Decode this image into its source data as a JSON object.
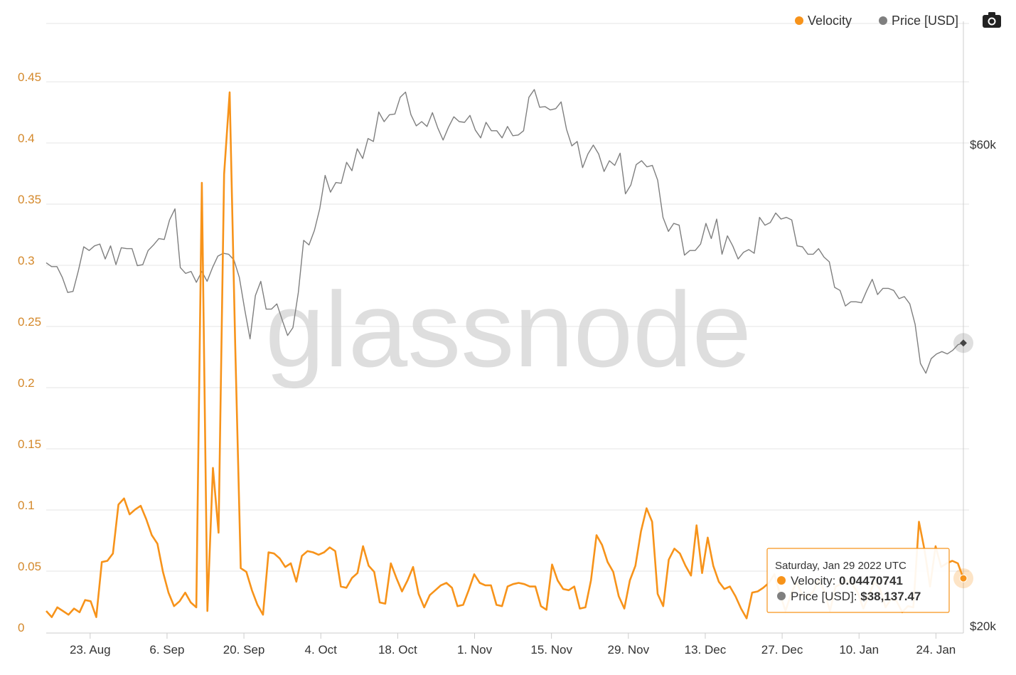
{
  "legend": {
    "velocity_label": "Velocity",
    "price_label": "Price [USD]"
  },
  "watermark": "glassnode",
  "colors": {
    "velocity": "#f7931a",
    "price": "#7f7f7f",
    "left_axis": "#d4882a"
  },
  "icons": {
    "export": "camera-icon"
  },
  "tooltip": {
    "date": "Saturday, Jan 29 2022 UTC",
    "velocity_label": "Velocity: ",
    "velocity_value": "0.04470741",
    "price_label": "Price [USD]: ",
    "price_value": "$38,137.47"
  },
  "chart_data": {
    "type": "line",
    "title": "",
    "grid": true,
    "legend_position": "top-right",
    "x_range": [
      "2021-08-15",
      "2022-01-29"
    ],
    "x_ticks": [
      {
        "label": "23. Aug",
        "date": "2021-08-23"
      },
      {
        "label": "6. Sep",
        "date": "2021-09-06"
      },
      {
        "label": "20. Sep",
        "date": "2021-09-20"
      },
      {
        "label": "4. Oct",
        "date": "2021-10-04"
      },
      {
        "label": "18. Oct",
        "date": "2021-10-18"
      },
      {
        "label": "1. Nov",
        "date": "2021-11-01"
      },
      {
        "label": "15. Nov",
        "date": "2021-11-15"
      },
      {
        "label": "29. Nov",
        "date": "2021-11-29"
      },
      {
        "label": "13. Dec",
        "date": "2021-12-13"
      },
      {
        "label": "27. Dec",
        "date": "2021-12-27"
      },
      {
        "label": "10. Jan",
        "date": "2022-01-10"
      },
      {
        "label": "24. Jan",
        "date": "2022-01-24"
      }
    ],
    "y_left": {
      "min": 0,
      "max": 0.5,
      "ticks": [
        {
          "label": "0",
          "value": 0
        },
        {
          "label": "0.05",
          "value": 0.05
        },
        {
          "label": "0.1",
          "value": 0.1
        },
        {
          "label": "0.15",
          "value": 0.15
        },
        {
          "label": "0.2",
          "value": 0.2
        },
        {
          "label": "0.25",
          "value": 0.25
        },
        {
          "label": "0.3",
          "value": 0.3
        },
        {
          "label": "0.35",
          "value": 0.35
        },
        {
          "label": "0.4",
          "value": 0.4
        },
        {
          "label": "0.45",
          "value": 0.45
        }
      ]
    },
    "y_right": {
      "scale": "log",
      "min": 20000,
      "max": 80000,
      "ticks": [
        {
          "label": "$20k",
          "value": 20000
        },
        {
          "label": "$60k",
          "value": 60000
        }
      ]
    },
    "series": [
      {
        "name": "Velocity",
        "axis": "left",
        "values": [
          0.018,
          0.013,
          0.021,
          0.018,
          0.015,
          0.02,
          0.017,
          0.027,
          0.026,
          0.013,
          0.058,
          0.059,
          0.065,
          0.105,
          0.11,
          0.097,
          0.101,
          0.104,
          0.093,
          0.08,
          0.073,
          0.05,
          0.033,
          0.022,
          0.026,
          0.033,
          0.025,
          0.021,
          0.368,
          0.018,
          0.135,
          0.082,
          0.375,
          0.442,
          0.236,
          0.053,
          0.05,
          0.035,
          0.023,
          0.015,
          0.066,
          0.065,
          0.061,
          0.054,
          0.057,
          0.042,
          0.063,
          0.067,
          0.066,
          0.064,
          0.066,
          0.07,
          0.067,
          0.038,
          0.037,
          0.045,
          0.049,
          0.071,
          0.055,
          0.05,
          0.025,
          0.024,
          0.057,
          0.045,
          0.034,
          0.043,
          0.054,
          0.032,
          0.021,
          0.031,
          0.035,
          0.039,
          0.041,
          0.037,
          0.022,
          0.023,
          0.035,
          0.048,
          0.041,
          0.039,
          0.039,
          0.023,
          0.022,
          0.038,
          0.04,
          0.041,
          0.04,
          0.038,
          0.038,
          0.022,
          0.019,
          0.056,
          0.043,
          0.036,
          0.035,
          0.038,
          0.02,
          0.021,
          0.043,
          0.08,
          0.072,
          0.058,
          0.05,
          0.03,
          0.02,
          0.043,
          0.055,
          0.083,
          0.102,
          0.091,
          0.032,
          0.022,
          0.06,
          0.069,
          0.065,
          0.055,
          0.047,
          0.088,
          0.049,
          0.078,
          0.055,
          0.042,
          0.036,
          0.038,
          0.03,
          0.02,
          0.012,
          0.033,
          0.034,
          0.037,
          0.041,
          0.048,
          0.032,
          0.018,
          0.032,
          0.042,
          0.031,
          0.03,
          0.034,
          0.044,
          0.034,
          0.018,
          0.038,
          0.04,
          0.043,
          0.04,
          0.033,
          0.02,
          0.031,
          0.042,
          0.036,
          0.021,
          0.028,
          0.026,
          0.017,
          0.022,
          0.021,
          0.091,
          0.068,
          0.038,
          0.071,
          0.054,
          0.057,
          0.059,
          0.057,
          0.0447
        ]
      },
      {
        "name": "Price [USD]",
        "axis": "right",
        "values": [
          45800,
          45400,
          45400,
          44300,
          42800,
          42900,
          45000,
          47500,
          47100,
          47600,
          47800,
          46200,
          47600,
          45600,
          47400,
          47300,
          47300,
          45500,
          45600,
          47100,
          47700,
          48400,
          48300,
          50500,
          51800,
          45300,
          44700,
          44900,
          43800,
          44900,
          43900,
          45300,
          46500,
          46800,
          46700,
          46100,
          44300,
          41200,
          38500,
          42500,
          43900,
          41200,
          41200,
          41700,
          40200,
          38800,
          39500,
          42800,
          48200,
          47700,
          49300,
          51800,
          55900,
          53800,
          55000,
          54900,
          57600,
          56500,
          59400,
          58100,
          60800,
          60400,
          64600,
          63200,
          64200,
          64300,
          66800,
          67600,
          64200,
          62600,
          63200,
          62500,
          64500,
          62300,
          60600,
          62400,
          63900,
          63200,
          63100,
          64100,
          62000,
          60900,
          63100,
          61900,
          61900,
          60900,
          62500,
          61200,
          61300,
          61900,
          66800,
          68000,
          65300,
          65400,
          64900,
          65100,
          66100,
          62100,
          59800,
          60400,
          56900,
          58700,
          59900,
          58700,
          56400,
          57800,
          57200,
          58800,
          53600,
          54700,
          57300,
          57800,
          57000,
          57200,
          55300,
          50800,
          49200,
          50100,
          49900,
          46600,
          47100,
          47100,
          47800,
          50100,
          48400,
          50600,
          46700,
          48700,
          47600,
          46200,
          46900,
          47200,
          46800,
          50800,
          49900,
          50200,
          51300,
          50600,
          50800,
          50500,
          47600,
          47500,
          46700,
          46700,
          47300,
          46400,
          45900,
          43300,
          43000,
          41500,
          41900,
          41900,
          41800,
          43000,
          44100,
          42600,
          43200,
          43200,
          43000,
          42200,
          42400,
          41700,
          39800,
          36400,
          35600,
          36800,
          37200,
          37400,
          37200,
          37500,
          38000,
          38137
        ]
      }
    ]
  }
}
